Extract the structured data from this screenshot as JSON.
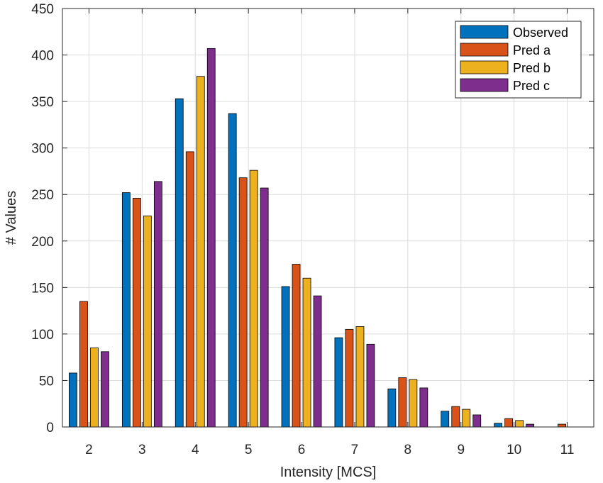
{
  "chart_data": {
    "type": "bar",
    "xlabel": "Intensity [MCS]",
    "ylabel": "# Values",
    "categories": [
      "2",
      "3",
      "4",
      "5",
      "6",
      "7",
      "8",
      "9",
      "10",
      "11"
    ],
    "ylim": [
      0,
      450
    ],
    "yticks": [
      "0",
      "50",
      "100",
      "150",
      "200",
      "250",
      "300",
      "350",
      "400",
      "450"
    ],
    "grid": true,
    "legend_position": "top-right",
    "series": [
      {
        "name": "Observed",
        "color": "#0072BD",
        "values": [
          58,
          252,
          353,
          337,
          151,
          96,
          41,
          17,
          4,
          0
        ]
      },
      {
        "name": "Pred a",
        "color": "#D95319",
        "values": [
          135,
          246,
          296,
          268,
          175,
          105,
          53,
          22,
          9,
          3
        ]
      },
      {
        "name": "Pred b",
        "color": "#EDB120",
        "values": [
          85,
          227,
          377,
          276,
          160,
          108,
          51,
          19,
          7,
          0
        ]
      },
      {
        "name": "Pred c",
        "color": "#7E2F8E",
        "values": [
          81,
          264,
          407,
          257,
          141,
          89,
          42,
          13,
          3,
          0
        ]
      }
    ]
  }
}
